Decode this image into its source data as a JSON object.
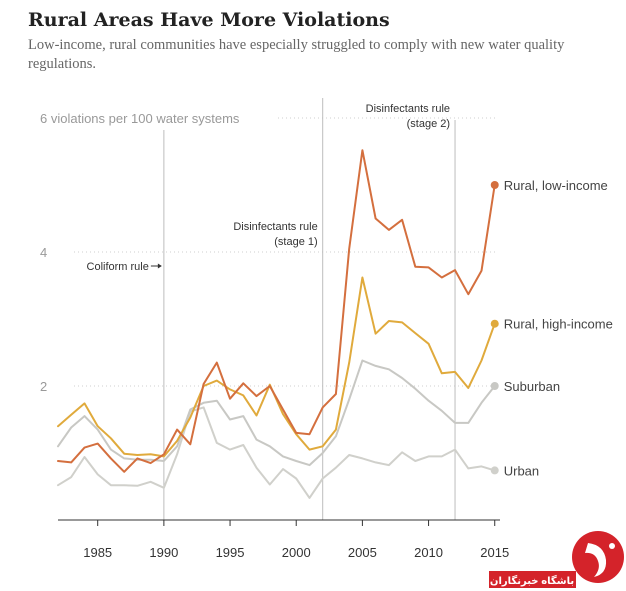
{
  "title": "Rural Areas Have More Violations",
  "subtitle": "Low-income, rural communities have especially struggled to comply with new water quality regulations.",
  "watermark": {
    "text": "باشگاه خبرنگاران",
    "color": "#d4232a"
  },
  "chart_data": {
    "type": "line",
    "xlim": [
      1982,
      2015.7
    ],
    "ylim": [
      0,
      6
    ],
    "x_ticks": [
      1985,
      1990,
      1995,
      2000,
      2005,
      2010,
      2015
    ],
    "y_ticks": [
      {
        "value": 2,
        "label": "2"
      },
      {
        "value": 4,
        "label": "4"
      },
      {
        "value": 6,
        "label": "6 violations per 100 water systems"
      }
    ],
    "grid": "horizontal dotted",
    "events": [
      {
        "x": 1990,
        "lines": [
          "Coliform rule"
        ],
        "arrow": true
      },
      {
        "x": 2002,
        "lines": [
          "Disinfectants rule",
          "(stage 1)"
        ],
        "arrow": false
      },
      {
        "x": 2012,
        "lines": [
          "Disinfectants rule",
          "(stage 2)"
        ],
        "arrow": false
      }
    ],
    "x": [
      1982,
      1983,
      1984,
      1985,
      1986,
      1987,
      1988,
      1989,
      1990,
      1991,
      1992,
      1993,
      1994,
      1995,
      1996,
      1997,
      1998,
      1999,
      2000,
      2001,
      2002,
      2003,
      2004,
      2005,
      2006,
      2007,
      2008,
      2009,
      2010,
      2011,
      2012,
      2013,
      2014,
      2015
    ],
    "series": [
      {
        "name": "Rural, low-income",
        "color": "#d46f3e",
        "values": [
          0.88,
          0.86,
          1.08,
          1.14,
          0.92,
          0.72,
          0.92,
          0.85,
          0.98,
          1.35,
          1.13,
          2.03,
          2.35,
          1.81,
          2.04,
          1.85,
          2.0,
          1.65,
          1.3,
          1.28,
          1.68,
          1.88,
          4.05,
          5.52,
          4.5,
          4.33,
          4.48,
          3.78,
          3.77,
          3.62,
          3.73,
          3.37,
          3.72,
          5.0
        ]
      },
      {
        "name": "Rural, high-income",
        "color": "#e0aa3c",
        "values": [
          1.4,
          1.57,
          1.74,
          1.4,
          1.22,
          0.99,
          0.97,
          0.98,
          0.95,
          1.18,
          1.53,
          2.0,
          2.08,
          1.95,
          1.86,
          1.56,
          2.02,
          1.58,
          1.28,
          1.05,
          1.1,
          1.35,
          2.35,
          3.62,
          2.78,
          2.97,
          2.95,
          2.79,
          2.63,
          2.19,
          2.21,
          1.97,
          2.38,
          2.93
        ]
      },
      {
        "name": "Suburban",
        "color": "#c8c8c4",
        "values": [
          1.1,
          1.38,
          1.55,
          1.35,
          1.05,
          0.92,
          0.9,
          0.9,
          0.88,
          1.1,
          1.65,
          1.75,
          1.78,
          1.5,
          1.55,
          1.2,
          1.1,
          0.95,
          0.88,
          0.82,
          1.0,
          1.25,
          1.8,
          2.38,
          2.3,
          2.25,
          2.12,
          1.96,
          1.78,
          1.63,
          1.45,
          1.45,
          1.75,
          2.0
        ]
      },
      {
        "name": "Urban",
        "color": "#d0d0cb",
        "values": [
          0.52,
          0.64,
          0.94,
          0.68,
          0.52,
          0.52,
          0.51,
          0.57,
          0.48,
          0.98,
          1.62,
          1.68,
          1.15,
          1.05,
          1.12,
          0.78,
          0.53,
          0.76,
          0.62,
          0.33,
          0.62,
          0.78,
          0.97,
          0.92,
          0.86,
          0.82,
          1.01,
          0.88,
          0.95,
          0.95,
          1.05,
          0.77,
          0.8,
          0.74
        ]
      }
    ]
  }
}
